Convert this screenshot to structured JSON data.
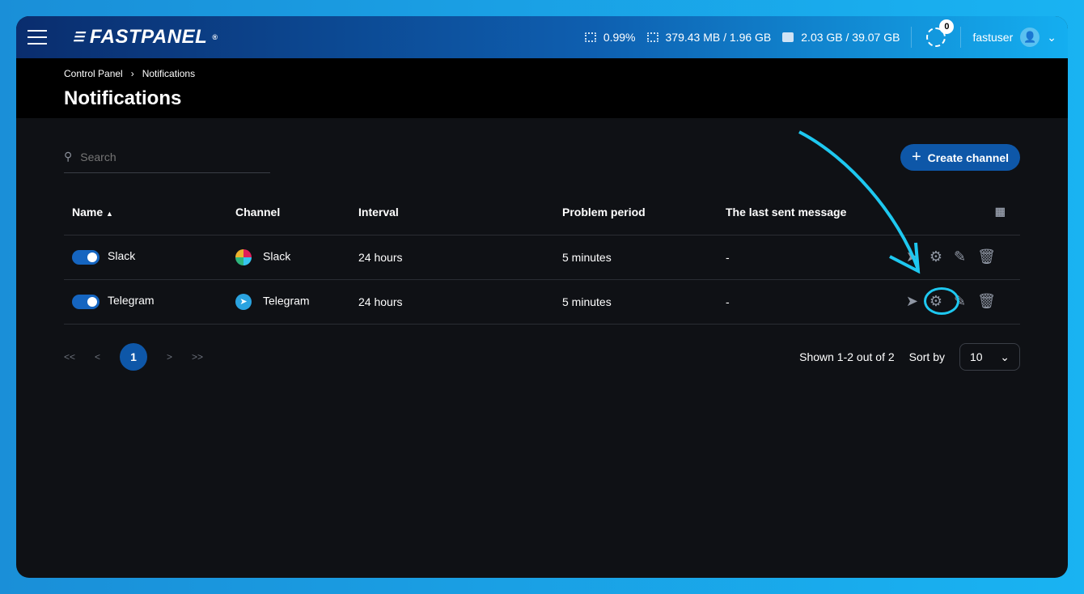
{
  "header": {
    "logo": "FASTPANEL",
    "logo_mark": "®",
    "cpu": "0.99%",
    "ram": "379.43 MB / 1.96 GB",
    "disk": "2.03 GB / 39.07 GB",
    "tasks_count": "0",
    "user": "fastuser"
  },
  "breadcrumb": [
    "Control Panel",
    "Notifications"
  ],
  "page_title": "Notifications",
  "search": {
    "placeholder": "Search"
  },
  "create_button": "Create channel",
  "columns": [
    "Name",
    "Channel",
    "Interval",
    "Problem period",
    "The last sent message"
  ],
  "rows": [
    {
      "name": "Slack",
      "enabled": true,
      "channel": "Slack",
      "interval": "24 hours",
      "problem_period": "5 minutes",
      "last_message": "-"
    },
    {
      "name": "Telegram",
      "enabled": true,
      "channel": "Telegram",
      "interval": "24 hours",
      "problem_period": "5 minutes",
      "last_message": "-"
    }
  ],
  "pagination": {
    "first": "<<",
    "prev": "<",
    "current": "1",
    "next": ">",
    "last": ">>"
  },
  "shown": "Shown 1-2 out of 2",
  "sort_label": "Sort by",
  "page_size": "10",
  "colors": {
    "accent": "#0e57a8",
    "annotation": "#1ec8f0"
  }
}
